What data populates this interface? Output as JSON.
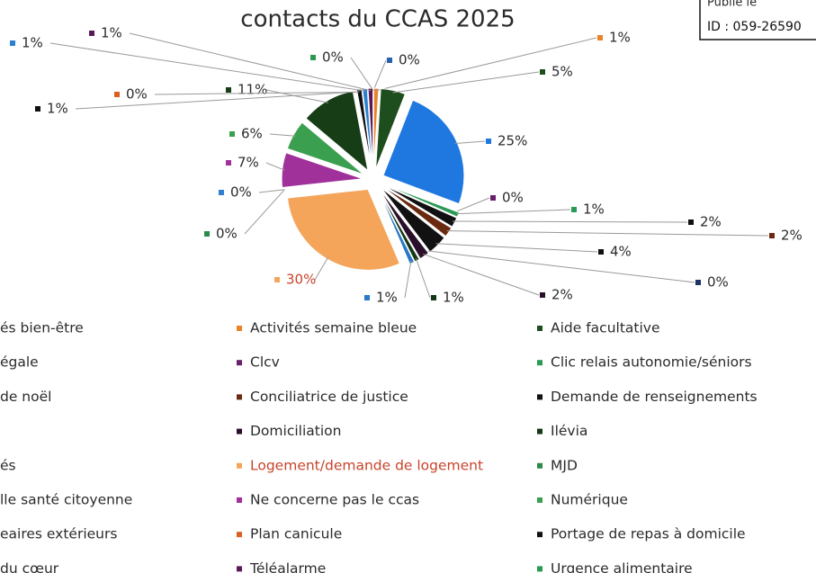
{
  "stamp": {
    "lines": [
      "Publié le",
      "ID : 059-26590"
    ]
  },
  "chart_data": {
    "type": "pie",
    "title": "contacts du CCAS 2025",
    "categories": [
      "és bien-être",
      "Activités semaine bleue",
      "Aide facultative",
      "égale",
      "Clcv",
      "Clic relais autonomie/séniors",
      "de noël",
      "Conciliatrice de justice",
      "Demande de renseignements",
      null,
      "Domiciliation",
      "Ilévia",
      "és",
      "Logement/demande de logement",
      "MJD",
      "lle santé citoyenne",
      "Ne concerne pas le ccas",
      "Numérique",
      "eaires extérieurs",
      "Plan canicule",
      "Portage de repas à domicile",
      "du cœur",
      "Téléalarme",
      "Urgence alimentaire"
    ],
    "values": [
      0,
      1,
      5,
      25,
      0,
      1,
      2,
      2,
      4,
      0,
      2,
      1,
      1,
      30,
      0,
      0,
      7,
      6,
      11,
      0,
      1,
      1,
      1,
      0
    ],
    "value_labels": [
      "0%",
      "1%",
      "5%",
      "25%",
      "0%",
      "1%",
      "2%",
      "2%",
      "4%",
      "0%",
      "2%",
      "1%",
      "1%",
      "30%",
      "0%",
      "0%",
      "7%",
      "6%",
      "11%",
      "0%",
      "1%",
      "1%",
      "1%",
      "0%"
    ],
    "colors": [
      "#2a5fb0",
      "#e8832a",
      "#1e4d1e",
      "#1f78e0",
      "#6b1f6b",
      "#2a9a55",
      "#111111",
      "#6b2a10",
      "#111111",
      "#1f3264",
      "#2a0f2a",
      "#143814",
      "#2a78c8",
      "#f4a55a",
      "#2a8a4a",
      "#3080d0",
      "#a0309a",
      "#3aa050",
      "#163d16",
      "#d86020",
      "#111111",
      "#2a80d0",
      "#5a1a5a",
      "#2a9a50"
    ]
  }
}
